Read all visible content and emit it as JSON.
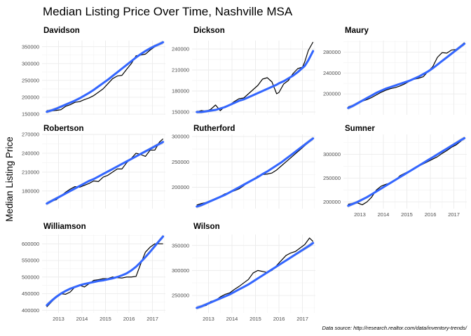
{
  "chart_data": {
    "type": "line",
    "title": "Median Listing Price Over Time, Nashville MSA",
    "ylabel": "Median Listing Price",
    "caption": "Data source: http://research.realtor.com/data/inventory-trends/",
    "x_tick_labels": [
      "2013",
      "2014",
      "2015",
      "2016",
      "2017"
    ],
    "x_range": [
      2012.3,
      2017.55
    ],
    "colors": {
      "observed": "#000000",
      "trend": "#3366FF",
      "band": "#bdbdbd",
      "grid": "#ebebeb"
    },
    "panels": [
      {
        "name": "Davidson",
        "ylim": [
          148000,
          368000
        ],
        "y_ticks": [
          150000,
          200000,
          250000,
          300000,
          350000
        ],
        "x": [
          2012.5,
          2012.7,
          2012.9,
          2013.1,
          2013.3,
          2013.5,
          2013.7,
          2013.9,
          2014.1,
          2014.3,
          2014.5,
          2014.7,
          2014.9,
          2015.1,
          2015.3,
          2015.5,
          2015.7,
          2015.9,
          2016.1,
          2016.3,
          2016.5,
          2016.7,
          2016.9,
          2017.1,
          2017.3,
          2017.45
        ],
        "values": [
          160000,
          160000,
          161000,
          163000,
          173000,
          178000,
          185000,
          187000,
          193000,
          198000,
          205000,
          215000,
          225000,
          240000,
          255000,
          263000,
          265000,
          283000,
          300000,
          323000,
          325000,
          328000,
          340000,
          350000,
          358000,
          362000
        ],
        "trend": [
          157000,
          161000,
          166000,
          172000,
          178000,
          184000,
          190000,
          197000,
          205000,
          213000,
          222000,
          232000,
          242000,
          252000,
          263000,
          274000,
          285000,
          296000,
          307000,
          318000,
          328000,
          337000,
          345000,
          352000,
          358000,
          363000
        ]
      },
      {
        "name": "Dickson",
        "ylim": [
          146000,
          252000
        ],
        "y_ticks": [
          150000,
          180000,
          210000,
          240000
        ],
        "x": [
          2012.5,
          2012.7,
          2012.9,
          2013.1,
          2013.3,
          2013.5,
          2013.7,
          2013.9,
          2014.1,
          2014.3,
          2014.5,
          2014.7,
          2014.9,
          2015.1,
          2015.3,
          2015.5,
          2015.7,
          2015.9,
          2016.0,
          2016.2,
          2016.4,
          2016.6,
          2016.8,
          2017.0,
          2017.1,
          2017.25,
          2017.45
        ],
        "values": [
          150000,
          152000,
          151000,
          154000,
          160000,
          152000,
          158000,
          160000,
          165000,
          169000,
          170000,
          176000,
          182000,
          188000,
          197000,
          199000,
          193000,
          176000,
          178000,
          190000,
          195000,
          205000,
          212000,
          214000,
          222000,
          238000,
          250000
        ],
        "trend": [
          150000,
          150000,
          151000,
          152000,
          153000,
          155000,
          157000,
          160000,
          163000,
          166000,
          168000,
          171000,
          174000,
          177000,
          180000,
          183000,
          186000,
          189000,
          191000,
          194000,
          198000,
          202000,
          207000,
          213000,
          216000,
          224000,
          237000
        ]
      },
      {
        "name": "Maury",
        "ylim": [
          160000,
          302000
        ],
        "y_ticks": [
          200000,
          240000,
          280000
        ],
        "x": [
          2012.5,
          2012.7,
          2012.9,
          2013.1,
          2013.3,
          2013.5,
          2013.7,
          2013.9,
          2014.1,
          2014.3,
          2014.5,
          2014.7,
          2014.9,
          2015.1,
          2015.3,
          2015.5,
          2015.7,
          2015.9,
          2016.1,
          2016.3,
          2016.5,
          2016.7,
          2016.9,
          2017.1,
          2017.3,
          2017.45
        ],
        "values": [
          175000,
          178000,
          182000,
          186000,
          189000,
          193000,
          198000,
          203000,
          207000,
          210000,
          212000,
          215000,
          219000,
          224000,
          228000,
          230000,
          233000,
          243000,
          252000,
          270000,
          279000,
          278000,
          284000,
          285000,
          292000,
          298000
        ],
        "trend": [
          173000,
          177000,
          182000,
          187000,
          192000,
          197000,
          202000,
          206000,
          210000,
          213000,
          216000,
          219000,
          222000,
          225000,
          229000,
          233000,
          238000,
          243000,
          249000,
          256000,
          263000,
          270000,
          277000,
          284000,
          291000,
          296000
        ]
      },
      {
        "name": "Robertson",
        "ylim": [
          152000,
          270000
        ],
        "y_ticks": [
          180000,
          210000,
          240000,
          270000
        ],
        "x": [
          2012.5,
          2012.7,
          2012.9,
          2013.1,
          2013.3,
          2013.5,
          2013.7,
          2013.9,
          2014.1,
          2014.3,
          2014.5,
          2014.7,
          2014.9,
          2015.1,
          2015.3,
          2015.5,
          2015.7,
          2015.9,
          2016.1,
          2016.3,
          2016.5,
          2016.7,
          2016.9,
          2017.1,
          2017.3,
          2017.45
        ],
        "values": [
          160000,
          164000,
          166000,
          172000,
          178000,
          183000,
          187000,
          186000,
          189000,
          192000,
          196000,
          195000,
          202000,
          205000,
          210000,
          215000,
          215000,
          225000,
          232000,
          240000,
          238000,
          235000,
          245000,
          245000,
          258000,
          263000
        ],
        "trend": [
          160000,
          164000,
          168000,
          172000,
          176000,
          180000,
          184000,
          188000,
          192000,
          196000,
          199000,
          203000,
          207000,
          211000,
          215000,
          219000,
          223000,
          227000,
          231000,
          235000,
          239000,
          243000,
          247000,
          251000,
          255000,
          258000
        ]
      },
      {
        "name": "Rutherford",
        "ylim": [
          158000,
          304000
        ],
        "y_ticks": [
          200000,
          250000,
          300000
        ],
        "x": [
          2012.5,
          2012.7,
          2012.9,
          2013.1,
          2013.3,
          2013.5,
          2013.7,
          2013.9,
          2014.1,
          2014.3,
          2014.5,
          2014.7,
          2014.9,
          2015.1,
          2015.3,
          2015.5,
          2015.7,
          2015.9,
          2016.1,
          2016.3,
          2016.5,
          2016.7,
          2016.9,
          2017.1,
          2017.3,
          2017.45
        ],
        "values": [
          165000,
          168000,
          170000,
          174000,
          178000,
          182000,
          187000,
          190000,
          193000,
          197000,
          203000,
          210000,
          215000,
          222000,
          225000,
          226000,
          228000,
          234000,
          242000,
          250000,
          258000,
          266000,
          274000,
          282000,
          290000,
          296000
        ],
        "trend": [
          162000,
          165000,
          169000,
          173000,
          177000,
          181000,
          185000,
          190000,
          195000,
          200000,
          205000,
          210000,
          215000,
          220000,
          226000,
          231000,
          237000,
          243000,
          249000,
          256000,
          263000,
          270000,
          277000,
          284000,
          291000,
          296000
        ]
      },
      {
        "name": "Sumner",
        "ylim": [
          186000,
          342000
        ],
        "y_ticks": [
          200000,
          250000,
          300000
        ],
        "x": [
          2012.5,
          2012.7,
          2012.9,
          2013.1,
          2013.3,
          2013.5,
          2013.7,
          2013.9,
          2014.1,
          2014.3,
          2014.5,
          2014.7,
          2014.9,
          2015.1,
          2015.3,
          2015.5,
          2015.7,
          2015.9,
          2016.1,
          2016.3,
          2016.5,
          2016.7,
          2016.9,
          2017.1,
          2017.3,
          2017.45
        ],
        "values": [
          195000,
          197000,
          198000,
          194000,
          200000,
          210000,
          225000,
          233000,
          237000,
          240000,
          245000,
          255000,
          260000,
          265000,
          270000,
          275000,
          280000,
          285000,
          290000,
          295000,
          302000,
          308000,
          315000,
          320000,
          328000,
          336000
        ],
        "trend": [
          192000,
          196000,
          200000,
          205000,
          210000,
          216000,
          222000,
          228000,
          234000,
          240000,
          246000,
          252000,
          258000,
          264000,
          270000,
          276000,
          282000,
          288000,
          294000,
          300000,
          306000,
          312000,
          318000,
          324000,
          330000,
          334000
        ]
      },
      {
        "name": "Williamson",
        "ylim": [
          392000,
          628000
        ],
        "y_ticks": [
          400000,
          450000,
          500000,
          550000,
          600000
        ],
        "x": [
          2012.5,
          2012.7,
          2012.9,
          2013.1,
          2013.3,
          2013.5,
          2013.7,
          2013.9,
          2014.1,
          2014.3,
          2014.5,
          2014.7,
          2014.9,
          2015.1,
          2015.3,
          2015.5,
          2015.7,
          2015.9,
          2016.1,
          2016.3,
          2016.5,
          2016.7,
          2016.9,
          2017.1,
          2017.3,
          2017.45
        ],
        "values": [
          410000,
          425000,
          440000,
          450000,
          448000,
          455000,
          470000,
          475000,
          470000,
          480000,
          490000,
          492000,
          495000,
          495000,
          500000,
          498000,
          497000,
          500000,
          500000,
          502000,
          540000,
          575000,
          590000,
          600000,
          600000,
          600000
        ],
        "trend": [
          415000,
          428000,
          440000,
          450000,
          458000,
          465000,
          470000,
          475000,
          479000,
          482000,
          485000,
          488000,
          490000,
          493000,
          496000,
          500000,
          505000,
          511000,
          520000,
          531000,
          545000,
          560000,
          576000,
          593000,
          610000,
          622000
        ]
      },
      {
        "name": "Wilson",
        "ylim": [
          215000,
          372000
        ],
        "y_ticks": [
          250000,
          300000,
          350000
        ],
        "x": [
          2012.5,
          2012.7,
          2012.9,
          2013.1,
          2013.3,
          2013.5,
          2013.7,
          2013.9,
          2014.1,
          2014.3,
          2014.5,
          2014.7,
          2014.9,
          2015.1,
          2015.3,
          2015.5,
          2015.7,
          2015.9,
          2016.1,
          2016.3,
          2016.5,
          2016.7,
          2016.9,
          2017.1,
          2017.3,
          2017.45
        ],
        "values": [
          226000,
          228000,
          230000,
          238000,
          240000,
          247000,
          252000,
          255000,
          262000,
          268000,
          275000,
          282000,
          295000,
          300000,
          298000,
          296000,
          300000,
          310000,
          320000,
          330000,
          335000,
          338000,
          345000,
          352000,
          365000,
          358000
        ],
        "trend": [
          225000,
          228000,
          232000,
          236000,
          240000,
          244000,
          248000,
          252000,
          257000,
          262000,
          267000,
          272000,
          278000,
          284000,
          290000,
          296000,
          302000,
          308000,
          314000,
          320000,
          326000,
          332000,
          338000,
          344000,
          350000,
          355000
        ]
      }
    ]
  }
}
